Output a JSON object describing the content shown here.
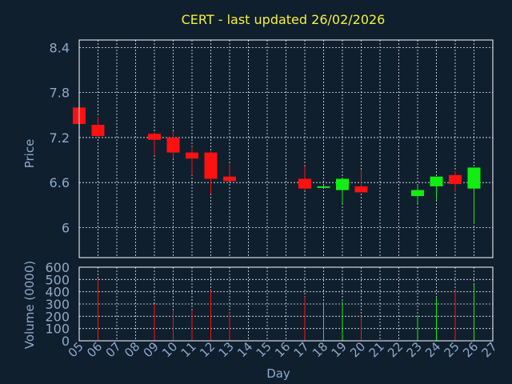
{
  "title": "CERT - last updated 26/02/2026",
  "colors": {
    "background": "#0f1f2e",
    "up": "#11ee11",
    "down": "#ff1111",
    "title": "#f5ef3a",
    "text": "#8fa9c9",
    "grid": "#ffffff"
  },
  "chart_data": {
    "type": "candlestick",
    "title": "CERT - last updated 26/02/2026",
    "xlabel": "Day",
    "price_panel": {
      "ylabel": "Price",
      "ylim": [
        5.6,
        8.5
      ],
      "yticks": [
        "8.4",
        "7.8",
        "7.2",
        "6.6",
        "6"
      ],
      "ytick_values": [
        8.4,
        7.8,
        7.2,
        6.6,
        6.0
      ],
      "grid": true
    },
    "volume_panel": {
      "ylabel": "Volume (0000)",
      "ylim": [
        0,
        600
      ],
      "yticks": [
        "600",
        "500",
        "400",
        "300",
        "200",
        "100",
        "0"
      ],
      "ytick_values": [
        600,
        500,
        400,
        300,
        200,
        100,
        0
      ],
      "grid": true
    },
    "x_ticks": [
      "05",
      "06",
      "07",
      "08",
      "09",
      "10",
      "11",
      "12",
      "13",
      "14",
      "15",
      "16",
      "17",
      "18",
      "19",
      "20",
      "21",
      "22",
      "23",
      "24",
      "25",
      "26",
      "27"
    ],
    "candles": [
      {
        "day": "05",
        "open": 7.6,
        "high": 7.6,
        "low": 7.38,
        "close": 7.38,
        "volume": 0
      },
      {
        "day": "06",
        "open": 7.37,
        "high": 7.48,
        "low": 7.2,
        "close": 7.22,
        "volume": 510
      },
      {
        "day": "09",
        "open": 7.25,
        "high": 7.27,
        "low": 6.97,
        "close": 7.17,
        "volume": 300
      },
      {
        "day": "10",
        "open": 7.2,
        "high": 7.28,
        "low": 6.92,
        "close": 7.0,
        "volume": 250
      },
      {
        "day": "11",
        "open": 7.0,
        "high": 7.08,
        "low": 6.7,
        "close": 6.92,
        "volume": 250
      },
      {
        "day": "12",
        "open": 7.0,
        "high": 7.02,
        "low": 6.45,
        "close": 6.65,
        "volume": 410
      },
      {
        "day": "13",
        "open": 6.68,
        "high": 6.85,
        "low": 6.62,
        "close": 6.62,
        "volume": 230
      },
      {
        "day": "17",
        "open": 6.65,
        "high": 6.82,
        "low": 6.5,
        "close": 6.52,
        "volume": 360
      },
      {
        "day": "18",
        "open": 6.53,
        "high": 6.56,
        "low": 6.53,
        "close": 6.55,
        "volume": 310
      },
      {
        "day": "19",
        "open": 6.5,
        "high": 6.65,
        "low": 6.32,
        "close": 6.65,
        "volume": 320
      },
      {
        "day": "20",
        "open": 6.55,
        "high": 6.77,
        "low": 6.47,
        "close": 6.47,
        "volume": 200
      },
      {
        "day": "23",
        "open": 6.42,
        "high": 6.57,
        "low": 6.32,
        "close": 6.5,
        "volume": 205
      },
      {
        "day": "24",
        "open": 6.55,
        "high": 6.68,
        "low": 6.37,
        "close": 6.68,
        "volume": 350
      },
      {
        "day": "25",
        "open": 6.7,
        "high": 6.75,
        "low": 6.47,
        "close": 6.58,
        "volume": 410
      },
      {
        "day": "26",
        "open": 6.52,
        "high": 6.8,
        "low": 6.05,
        "close": 6.8,
        "volume": 460
      }
    ]
  }
}
